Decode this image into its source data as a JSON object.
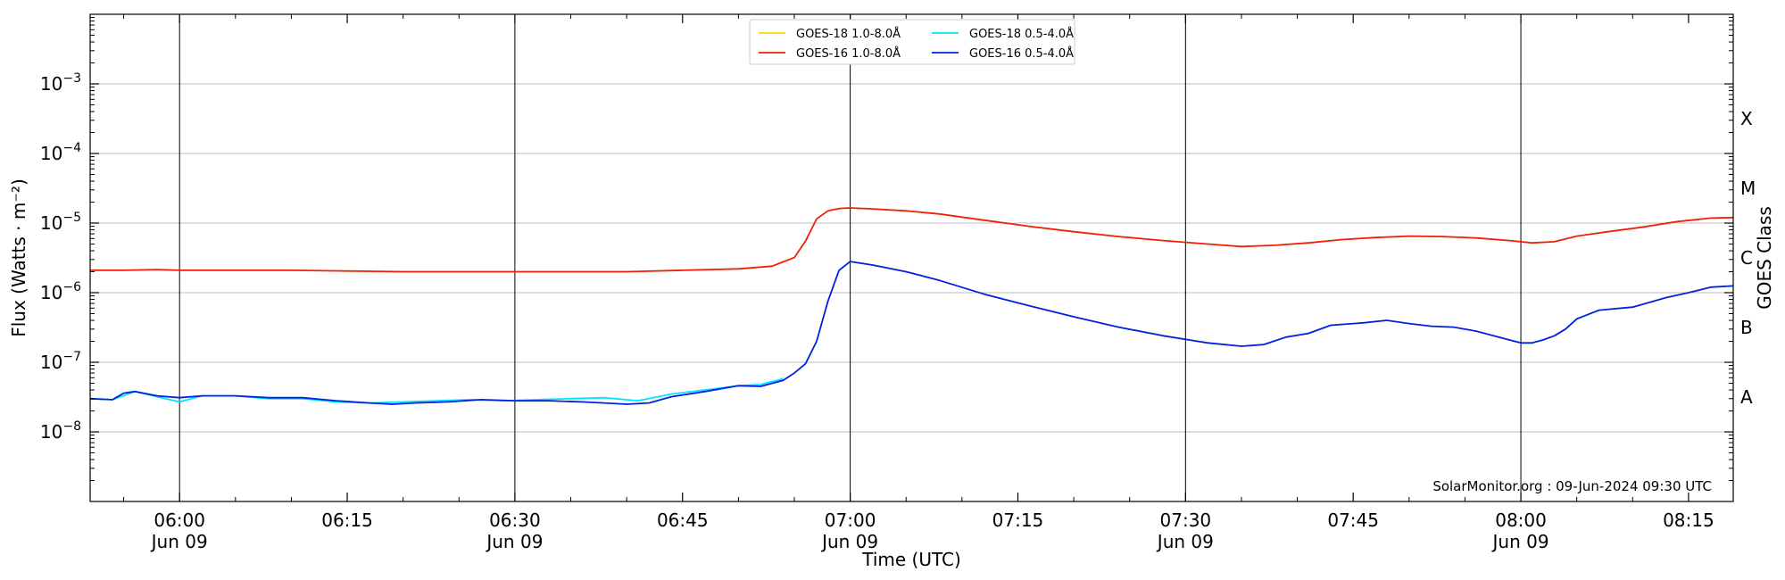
{
  "chart_data": {
    "type": "line",
    "xlabel": "Time (UTC)",
    "ylabel": "Flux (Watts · m⁻²)",
    "y2label": "GOES Class",
    "yscale": "log",
    "ylim": [
      1e-09,
      0.01
    ],
    "xlim": [
      "05:52",
      "08:19"
    ],
    "grid": "horizontal",
    "legend_position": "top-center",
    "credit": "SolarMonitor.org : 09-Jun-2024 09:30 UTC",
    "x_ticks": [
      {
        "time": "06:00",
        "label": "06:00",
        "sublabel": "Jun 09",
        "major": true
      },
      {
        "time": "06:15",
        "label": "06:15",
        "sublabel": "",
        "major": false
      },
      {
        "time": "06:30",
        "label": "06:30",
        "sublabel": "Jun 09",
        "major": true
      },
      {
        "time": "06:45",
        "label": "06:45",
        "sublabel": "",
        "major": false
      },
      {
        "time": "07:00",
        "label": "07:00",
        "sublabel": "Jun 09",
        "major": true
      },
      {
        "time": "07:15",
        "label": "07:15",
        "sublabel": "",
        "major": false
      },
      {
        "time": "07:30",
        "label": "07:30",
        "sublabel": "Jun 09",
        "major": true
      },
      {
        "time": "07:45",
        "label": "07:45",
        "sublabel": "",
        "major": false
      },
      {
        "time": "08:00",
        "label": "08:00",
        "sublabel": "Jun 09",
        "major": true
      },
      {
        "time": "08:15",
        "label": "08:15",
        "sublabel": "",
        "major": false
      }
    ],
    "y_ticks": [
      {
        "value": 1e-08,
        "base": "10",
        "exp": "−8"
      },
      {
        "value": 1e-07,
        "base": "10",
        "exp": "−7"
      },
      {
        "value": 1e-06,
        "base": "10",
        "exp": "−6"
      },
      {
        "value": 1e-05,
        "base": "10",
        "exp": "−5"
      },
      {
        "value": 0.0001,
        "base": "10",
        "exp": "−4"
      },
      {
        "value": 0.001,
        "base": "10",
        "exp": "−3"
      }
    ],
    "classes": [
      {
        "label": "A",
        "value": 3.16e-08
      },
      {
        "label": "B",
        "value": 3.16e-07
      },
      {
        "label": "C",
        "value": 3.16e-06
      },
      {
        "label": "M",
        "value": 3.16e-05
      },
      {
        "label": "X",
        "value": 0.000316
      }
    ],
    "series": [
      {
        "name": "GOES-18 1.0-8.0Å",
        "color": "#ffd700",
        "x": [],
        "y": []
      },
      {
        "name": "GOES-18 0.5-4.0Å",
        "color": "#00e5ff",
        "x": [
          "05:52",
          "05:54",
          "05:56",
          "05:58",
          "06:00",
          "06:02",
          "06:05",
          "06:08",
          "06:11",
          "06:14",
          "06:17",
          "06:20",
          "06:23",
          "06:26",
          "06:29",
          "06:32",
          "06:35",
          "06:38",
          "06:41",
          "06:44",
          "06:47",
          "06:50",
          "06:52",
          "06:54"
        ],
        "y": [
          3e-08,
          2.9e-08,
          3.8e-08,
          3.2e-08,
          2.7e-08,
          3.3e-08,
          3.3e-08,
          3e-08,
          3e-08,
          2.7e-08,
          2.6e-08,
          2.7e-08,
          2.8e-08,
          2.9e-08,
          2.8e-08,
          2.9e-08,
          3e-08,
          3.1e-08,
          2.8e-08,
          3.5e-08,
          4e-08,
          4.6e-08,
          4.8e-08,
          5.8e-08
        ]
      },
      {
        "name": "GOES-16 1.0-8.0Å",
        "color": "#ee2200",
        "x": [
          "05:52",
          "05:55",
          "05:58",
          "06:00",
          "06:05",
          "06:10",
          "06:15",
          "06:20",
          "06:25",
          "06:30",
          "06:35",
          "06:40",
          "06:45",
          "06:50",
          "06:53",
          "06:55",
          "06:56",
          "06:57",
          "06:58",
          "06:59",
          "07:00",
          "07:02",
          "07:05",
          "07:08",
          "07:12",
          "07:16",
          "07:20",
          "07:24",
          "07:28",
          "07:32",
          "07:35",
          "07:38",
          "07:41",
          "07:44",
          "07:47",
          "07:50",
          "07:53",
          "07:56",
          "07:59",
          "08:01",
          "08:03",
          "08:05",
          "08:08",
          "08:11",
          "08:14",
          "08:17",
          "08:19"
        ],
        "y": [
          2.1e-06,
          2.1e-06,
          2.15e-06,
          2.1e-06,
          2.1e-06,
          2.1e-06,
          2.05e-06,
          2e-06,
          2e-06,
          2e-06,
          2e-06,
          2e-06,
          2.1e-06,
          2.2e-06,
          2.4e-06,
          3.2e-06,
          5.5e-06,
          1.15e-05,
          1.5e-05,
          1.62e-05,
          1.65e-05,
          1.6e-05,
          1.5e-05,
          1.35e-05,
          1.1e-05,
          9e-06,
          7.5e-06,
          6.4e-06,
          5.6e-06,
          5e-06,
          4.6e-06,
          4.8e-06,
          5.2e-06,
          5.8e-06,
          6.2e-06,
          6.5e-06,
          6.4e-06,
          6.1e-06,
          5.6e-06,
          5.2e-06,
          5.4e-06,
          6.5e-06,
          7.6e-06,
          8.8e-06,
          1.05e-05,
          1.18e-05,
          1.2e-05
        ]
      },
      {
        "name": "GOES-16 0.5-4.0Å",
        "color": "#0022dd",
        "x": [
          "05:52",
          "05:54",
          "05:55",
          "05:56",
          "05:58",
          "06:00",
          "06:02",
          "06:05",
          "06:08",
          "06:11",
          "06:14",
          "06:17",
          "06:19",
          "06:21",
          "06:24",
          "06:27",
          "06:30",
          "06:33",
          "06:36",
          "06:38",
          "06:40",
          "06:42",
          "06:44",
          "06:47",
          "06:50",
          "06:52",
          "06:54",
          "06:55",
          "06:56",
          "06:57",
          "06:58",
          "06:59",
          "07:00",
          "07:02",
          "07:05",
          "07:08",
          "07:12",
          "07:16",
          "07:20",
          "07:24",
          "07:28",
          "07:32",
          "07:35",
          "07:37",
          "07:39",
          "07:41",
          "07:43",
          "07:46",
          "07:48",
          "07:50",
          "07:52",
          "07:54",
          "07:56",
          "07:58",
          "08:00",
          "08:01",
          "08:02",
          "08:03",
          "08:04",
          "08:05",
          "08:07",
          "08:10",
          "08:13",
          "08:15",
          "08:17",
          "08:19"
        ],
        "y": [
          3e-08,
          2.9e-08,
          3.6e-08,
          3.8e-08,
          3.3e-08,
          3.1e-08,
          3.3e-08,
          3.3e-08,
          3.1e-08,
          3.1e-08,
          2.8e-08,
          2.6e-08,
          2.5e-08,
          2.6e-08,
          2.7e-08,
          2.9e-08,
          2.8e-08,
          2.8e-08,
          2.7e-08,
          2.6e-08,
          2.5e-08,
          2.6e-08,
          3.2e-08,
          3.8e-08,
          4.6e-08,
          4.5e-08,
          5.5e-08,
          7e-08,
          9.5e-08,
          2e-07,
          7.5e-07,
          2.1e-06,
          2.8e-06,
          2.5e-06,
          2e-06,
          1.5e-06,
          9.5e-07,
          6.5e-07,
          4.5e-07,
          3.2e-07,
          2.4e-07,
          1.9e-07,
          1.7e-07,
          1.8e-07,
          2.3e-07,
          2.6e-07,
          3.4e-07,
          3.7e-07,
          4e-07,
          3.6e-07,
          3.3e-07,
          3.2e-07,
          2.8e-07,
          2.3e-07,
          1.9e-07,
          1.9e-07,
          2.1e-07,
          2.4e-07,
          3e-07,
          4.2e-07,
          5.6e-07,
          6.2e-07,
          8.5e-07,
          1e-06,
          1.2e-06,
          1.25e-06
        ]
      }
    ]
  }
}
